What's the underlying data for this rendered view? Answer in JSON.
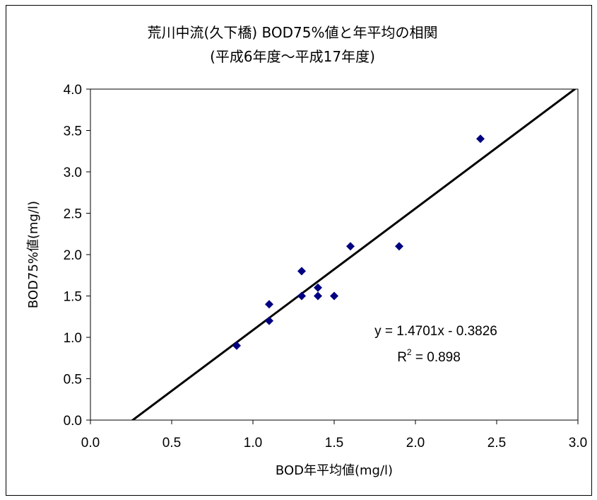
{
  "chart_data": {
    "type": "scatter",
    "title": "荒川中流(久下橋) BOD75%値と年平均の相関",
    "subtitle": "(平成6年度～平成17年度)",
    "xlabel": "BOD年平均値(mg/l)",
    "ylabel": "BOD75%値(mg/l)",
    "xlim": [
      0.0,
      3.0
    ],
    "ylim": [
      0.0,
      4.0
    ],
    "xticks": [
      "0.0",
      "0.5",
      "1.0",
      "1.5",
      "2.0",
      "2.5",
      "3.0"
    ],
    "yticks": [
      "0.0",
      "0.5",
      "1.0",
      "1.5",
      "2.0",
      "2.5",
      "3.0",
      "3.5",
      "4.0"
    ],
    "grid": false,
    "series": [
      {
        "color": "#000080",
        "marker": "diamond",
        "points": [
          {
            "x": 0.9,
            "y": 0.9
          },
          {
            "x": 1.1,
            "y": 1.2
          },
          {
            "x": 1.1,
            "y": 1.4
          },
          {
            "x": 1.3,
            "y": 1.5
          },
          {
            "x": 1.3,
            "y": 1.8
          },
          {
            "x": 1.4,
            "y": 1.5
          },
          {
            "x": 1.4,
            "y": 1.6
          },
          {
            "x": 1.5,
            "y": 1.5
          },
          {
            "x": 1.6,
            "y": 2.1
          },
          {
            "x": 1.9,
            "y": 2.1
          },
          {
            "x": 2.4,
            "y": 3.4
          }
        ]
      }
    ],
    "trendline": {
      "type": "linear",
      "slope": 1.4701,
      "intercept": -0.3826,
      "color": "#000000",
      "equation_label": "y = 1.4701x - 0.3826",
      "r2_label": "R",
      "r2_sup": "2",
      "r2_value": " = 0.898"
    }
  }
}
